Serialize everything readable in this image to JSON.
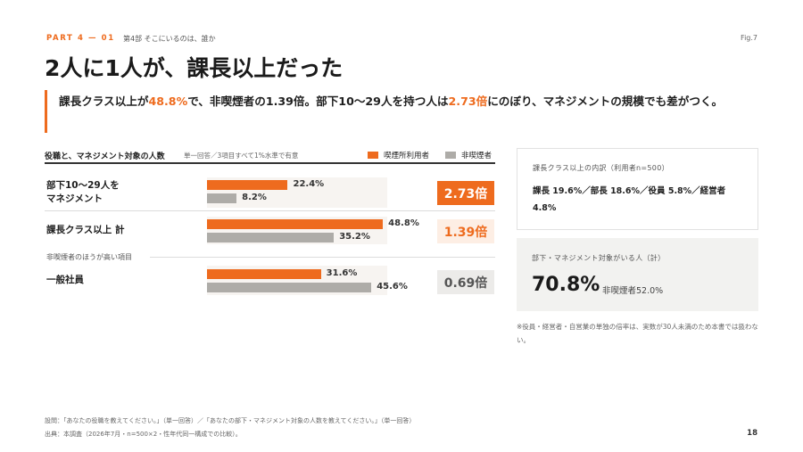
{
  "header": {
    "part": "PART 4 — 01",
    "part_sub": "第4部 そこにいるのは、誰か",
    "fig": "Fig.7",
    "page": "18"
  },
  "title": "2人に1人が、課長以上だった",
  "lead": {
    "t1": "課長クラス以上が",
    "h1": "48.8%",
    "t2": "で、非喫煙者の1.39倍。部下10〜29人を持つ人は",
    "h2": "2.73倍",
    "t3": "にのぼり、マネジメントの規模でも差がつく。"
  },
  "chart": {
    "title": "役職と、マネジメント対象の人数",
    "note": "単一回答／3項目すべて1%水準で有意",
    "legend_user": "喫煙所利用者",
    "legend_non": "非喫煙者",
    "subsection": "非喫煙者のほうが高い項目"
  },
  "rows": [
    {
      "label1": "部下10〜29人を",
      "label2": "マネジメント",
      "user_label": "22.4%",
      "non_label": "8.2%",
      "ratio": "2.73倍"
    },
    {
      "label1": "課長クラス以上 計",
      "label2": "",
      "user_label": "48.8%",
      "non_label": "35.2%",
      "ratio": "1.39倍"
    },
    {
      "label1": "一般社員",
      "label2": "",
      "user_label": "31.6%",
      "non_label": "45.6%",
      "ratio": "0.69倍"
    }
  ],
  "chart_data": {
    "type": "bar",
    "title": "役職と、マネジメント対象の人数",
    "categories": [
      "部下10〜29人をマネジメント",
      "課長クラス以上 計",
      "一般社員"
    ],
    "series": [
      {
        "name": "喫煙所利用者",
        "values": [
          22.4,
          48.8,
          31.6
        ]
      },
      {
        "name": "非喫煙者",
        "values": [
          8.2,
          35.2,
          45.6
        ]
      }
    ],
    "ratios": [
      "2.73倍",
      "1.39倍",
      "0.69倍"
    ],
    "xlim": [
      0,
      50
    ],
    "orientation": "horizontal",
    "colors": {
      "喫煙所利用者": "#ee6b1e",
      "非喫煙者": "#aeaca8"
    }
  },
  "card1": {
    "head": "課長クラス以上の内訳（利用者n=500）",
    "body": "課長 19.6%／部長 18.6%／役員 5.8%／経営者 4.8%"
  },
  "card2": {
    "head": "部下・マネジメント対象がいる人（計）",
    "big": "70.8%",
    "small": "非喫煙者52.0%"
  },
  "footnote": "※役員・経営者・自営業の単独の倍率は、実数が30人未満のため本書では扱わない。",
  "source": {
    "q": "設問：「あなたの役職を教えてください。」（単一回答）／「あなたの部下・マネジメント対象の人数を教えてください。」（単一回答）",
    "s": "出典：本調査（2026年7月・n=500×2・性年代同一構成での比較）。"
  },
  "colors": {
    "accent": "#ee6b1e",
    "grey_bar": "#aeaca8",
    "track": "#f7f4f1"
  }
}
